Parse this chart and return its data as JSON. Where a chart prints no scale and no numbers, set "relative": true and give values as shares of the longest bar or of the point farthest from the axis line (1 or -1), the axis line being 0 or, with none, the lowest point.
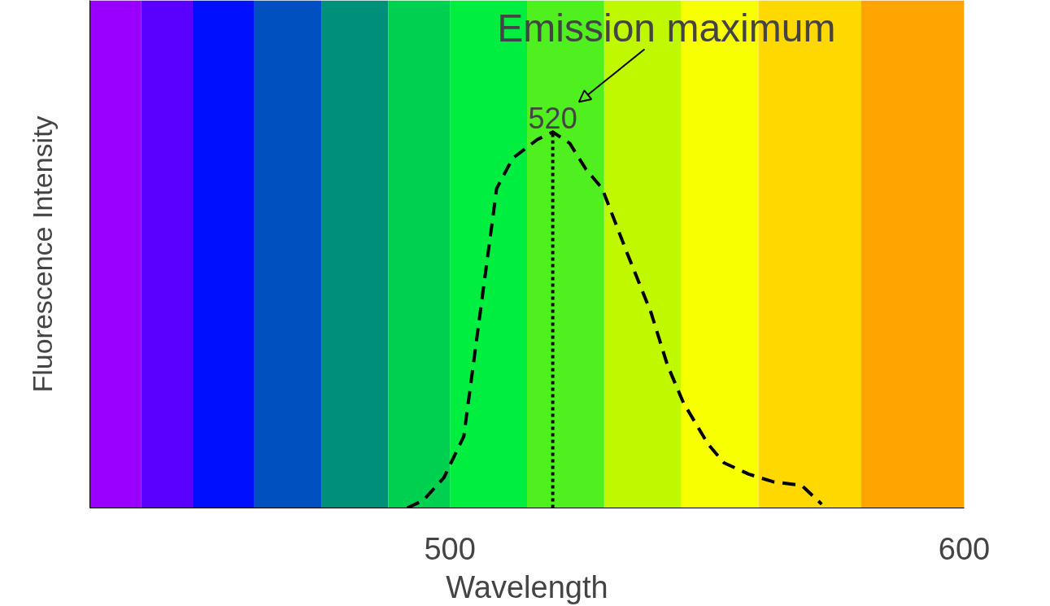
{
  "chart_data": {
    "type": "line",
    "xlabel": "Wavelength",
    "ylabel": "Fluorescence Intensity",
    "relative": true,
    "xlim": [
      430,
      600
    ],
    "xticks": [
      500,
      600
    ],
    "tick_labels": "x",
    "marker": "none",
    "line_style": "dashed",
    "series": [
      {
        "color": "#000000",
        "x": [
          491.7,
          494.8,
          498.8,
          502.7,
          505.9,
          509.1,
          512.2,
          517.0,
          520,
          523.3,
          526.5,
          529.6,
          534.4,
          539.1,
          542.3,
          545.4,
          550.2,
          553.3,
          558.1,
          562.8,
          568.4,
          572.3
        ],
        "values": [
          0,
          0.02,
          0.08,
          0.19,
          0.52,
          0.85,
          0.93,
          0.98,
          1.0,
          0.97,
          0.9,
          0.85,
          0.68,
          0.52,
          0.38,
          0.28,
          0.17,
          0.12,
          0.09,
          0.07,
          0.06,
          0.01
        ]
      }
    ],
    "ref_lines": [
      {
        "axis": "x",
        "value": 520,
        "label": "520",
        "color": "#000000",
        "line_style": "dotted"
      }
    ],
    "annotations": [
      {
        "text": "Emission maximum",
        "x": 520,
        "y": 1.0
      }
    ],
    "bands": [
      {
        "axis": "x",
        "from": 430,
        "to": 440,
        "color": "#9a00ff"
      },
      {
        "axis": "x",
        "from": 440,
        "to": 450,
        "color": "#5a00ff"
      },
      {
        "axis": "x",
        "from": 450,
        "to": 462,
        "color": "#0010ff"
      },
      {
        "axis": "x",
        "from": 462,
        "to": 475,
        "color": "#0050c0"
      },
      {
        "axis": "x",
        "from": 475,
        "to": 488,
        "color": "#00907a"
      },
      {
        "axis": "x",
        "from": 488,
        "to": 500,
        "color": "#00d050"
      },
      {
        "axis": "x",
        "from": 500,
        "to": 515,
        "color": "#00ee40"
      },
      {
        "axis": "x",
        "from": 515,
        "to": 530,
        "color": "#50f020"
      },
      {
        "axis": "x",
        "from": 530,
        "to": 545,
        "color": "#c0f800"
      },
      {
        "axis": "x",
        "from": 545,
        "to": 560,
        "color": "#f8ff00"
      },
      {
        "axis": "x",
        "from": 560,
        "to": 580,
        "color": "#ffd800"
      },
      {
        "axis": "x",
        "from": 580,
        "to": 600,
        "color": "#ffa400"
      }
    ]
  }
}
